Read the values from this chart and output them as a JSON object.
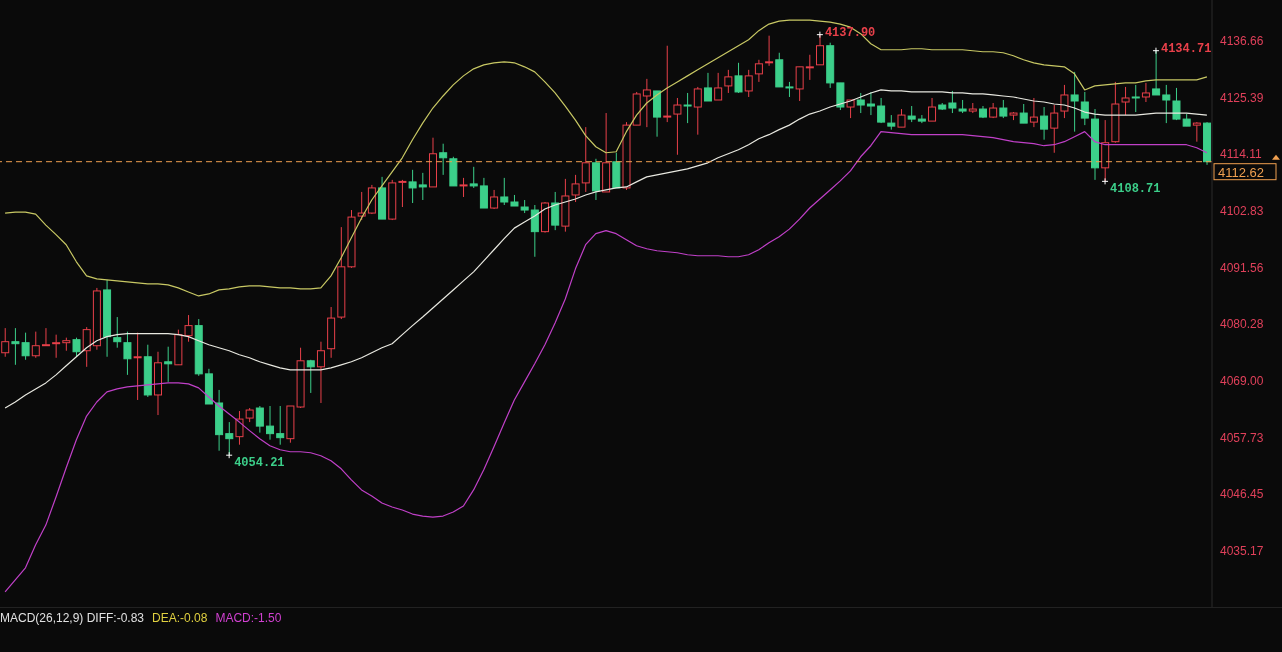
{
  "chart_data": {
    "type": "candlestick",
    "categories": [
      null,
      null,
      null,
      null,
      null,
      null,
      null,
      null,
      null,
      null,
      null,
      null,
      null,
      null,
      null,
      null,
      null,
      null,
      null,
      null,
      null,
      null,
      null,
      null,
      null,
      null,
      null,
      null,
      null,
      null,
      null,
      null,
      null,
      null,
      null,
      null,
      null,
      null,
      null,
      null,
      null,
      null,
      null,
      null,
      null,
      null,
      null,
      null,
      null,
      null,
      null,
      null,
      null,
      null,
      null,
      null,
      null,
      null,
      null,
      null,
      null,
      null,
      null,
      null,
      null,
      null,
      null,
      null,
      null,
      null,
      null,
      null,
      null,
      null,
      null,
      null,
      null,
      null,
      null,
      null,
      null,
      null,
      null,
      null,
      null,
      null,
      null,
      null,
      null,
      null,
      null,
      null,
      null,
      null,
      null,
      null,
      null,
      null,
      null,
      null,
      null,
      null,
      null,
      null,
      null,
      null,
      null,
      null,
      null,
      null,
      null,
      null,
      null,
      null,
      null,
      null,
      null,
      null,
      null
    ],
    "ohlc": [
      [
        4074.6,
        4079.5,
        4073.8,
        4076.8
      ],
      [
        4076.8,
        4079.5,
        4072.2,
        4076.4
      ],
      [
        4076.6,
        4078.6,
        4073.2,
        4074.0
      ],
      [
        4074.0,
        4078.8,
        4073.6,
        4076.0
      ],
      [
        4076.1,
        4079.5,
        4076.0,
        4076.2
      ],
      [
        4076.4,
        4078.2,
        4073.6,
        4076.6
      ],
      [
        4076.6,
        4077.6,
        4075.0,
        4077.0
      ],
      [
        4077.2,
        4077.6,
        4073.8,
        4074.8
      ],
      [
        4075.0,
        4079.7,
        4071.8,
        4079.2
      ],
      [
        4076.0,
        4087.5,
        4075.2,
        4086.9
      ],
      [
        4087.1,
        4089.1,
        4073.8,
        4077.8
      ],
      [
        4077.6,
        4081.7,
        4075.6,
        4076.8
      ],
      [
        4076.6,
        4078.8,
        4070.2,
        4073.4
      ],
      [
        4073.6,
        4078.6,
        4065.2,
        4073.8
      ],
      [
        4073.8,
        4076.2,
        4065.8,
        4066.2
      ],
      [
        4066.2,
        4074.8,
        4062.2,
        4072.6
      ],
      [
        4072.8,
        4075.8,
        4068.8,
        4072.4
      ],
      [
        4072.2,
        4079.2,
        4072.2,
        4078.2
      ],
      [
        4078.0,
        4082.1,
        4076.8,
        4080.0
      ],
      [
        4080.0,
        4081.3,
        4070.0,
        4070.4
      ],
      [
        4070.4,
        4071.4,
        4064.4,
        4064.4
      ],
      [
        4064.6,
        4067.2,
        4055.1,
        4058.3
      ],
      [
        4058.5,
        4060.8,
        4054.21,
        4057.5
      ],
      [
        4057.9,
        4063.0,
        4056.3,
        4061.4
      ],
      [
        4061.6,
        4063.6,
        4060.8,
        4063.2
      ],
      [
        4063.6,
        4064.0,
        4058.7,
        4060.0
      ],
      [
        4060.0,
        4064.0,
        4057.3,
        4058.5
      ],
      [
        4058.5,
        4064.0,
        4056.3,
        4057.7
      ],
      [
        4057.5,
        4064.0,
        4056.7,
        4064.0
      ],
      [
        4063.8,
        4075.6,
        4063.6,
        4073.0
      ],
      [
        4073.0,
        4073.2,
        4066.6,
        4071.8
      ],
      [
        4071.8,
        4076.8,
        4064.6,
        4075.0
      ],
      [
        4075.4,
        4083.7,
        4073.6,
        4081.5
      ],
      [
        4081.7,
        4099.6,
        4081.3,
        4091.7
      ],
      [
        4091.7,
        4103.0,
        4091.5,
        4101.6
      ],
      [
        4101.8,
        4106.6,
        4101.0,
        4102.4
      ],
      [
        4102.4,
        4108.0,
        4102.2,
        4107.4
      ],
      [
        4107.4,
        4109.6,
        4101.2,
        4101.2
      ],
      [
        4101.2,
        4109.0,
        4101.0,
        4108.4
      ],
      [
        4108.5,
        4109.0,
        4103.6,
        4108.7
      ],
      [
        4108.6,
        4111.0,
        4104.4,
        4107.4
      ],
      [
        4108.0,
        4110.4,
        4105.0,
        4107.6
      ],
      [
        4107.6,
        4117.4,
        4107.6,
        4114.2
      ],
      [
        4114.4,
        4116.2,
        4110.0,
        4113.4
      ],
      [
        4113.2,
        4113.6,
        4107.8,
        4107.8
      ],
      [
        4107.8,
        4109.4,
        4105.6,
        4108.0
      ],
      [
        4108.2,
        4111.6,
        4107.4,
        4107.8
      ],
      [
        4107.8,
        4109.4,
        4103.4,
        4103.4
      ],
      [
        4103.4,
        4107.0,
        4103.2,
        4105.6
      ],
      [
        4105.6,
        4109.4,
        4104.0,
        4104.6
      ],
      [
        4104.6,
        4106.0,
        4103.8,
        4103.8
      ],
      [
        4103.6,
        4105.0,
        4102.4,
        4103.0
      ],
      [
        4103.0,
        4104.0,
        4093.7,
        4098.7
      ],
      [
        4098.7,
        4104.6,
        4098.5,
        4104.4
      ],
      [
        4104.4,
        4106.6,
        4099.0,
        4100.0
      ],
      [
        4099.8,
        4109.2,
        4098.7,
        4105.8
      ],
      [
        4106.0,
        4110.0,
        4104.6,
        4108.2
      ],
      [
        4108.4,
        4119.5,
        4106.6,
        4112.4
      ],
      [
        4112.4,
        4113.2,
        4105.0,
        4106.8
      ],
      [
        4106.6,
        4122.3,
        4106.6,
        4112.4
      ],
      [
        4112.6,
        4114.4,
        4107.4,
        4107.4
      ],
      [
        4107.4,
        4120.5,
        4107.0,
        4119.9
      ],
      [
        4119.9,
        4126.5,
        4119.9,
        4126.1
      ],
      [
        4125.7,
        4129.1,
        4119.5,
        4126.9
      ],
      [
        4126.7,
        4126.7,
        4117.6,
        4121.5
      ],
      [
        4121.5,
        4135.7,
        4120.5,
        4121.7
      ],
      [
        4122.1,
        4125.3,
        4114.0,
        4123.9
      ],
      [
        4123.9,
        4126.3,
        4120.3,
        4123.7
      ],
      [
        4123.5,
        4127.5,
        4118.0,
        4127.1
      ],
      [
        4127.3,
        4130.3,
        4124.7,
        4124.7
      ],
      [
        4124.9,
        4130.3,
        4124.9,
        4127.3
      ],
      [
        4127.7,
        4130.9,
        4126.3,
        4129.5
      ],
      [
        4129.7,
        4132.3,
        4126.3,
        4126.5
      ],
      [
        4126.7,
        4130.9,
        4125.5,
        4129.7
      ],
      [
        4130.1,
        4132.9,
        4128.5,
        4132.1
      ],
      [
        4132.3,
        4137.7,
        4131.7,
        4132.5
      ],
      [
        4132.9,
        4134.3,
        4127.5,
        4127.5
      ],
      [
        4127.5,
        4128.5,
        4125.5,
        4127.3
      ],
      [
        4127.1,
        4131.5,
        4124.7,
        4131.5
      ],
      [
        4131.3,
        4133.9,
        4128.9,
        4131.5
      ],
      [
        4131.9,
        4137.9,
        4131.9,
        4135.7
      ],
      [
        4135.7,
        4136.3,
        4127.3,
        4128.3
      ],
      [
        4128.3,
        4128.3,
        4122.9,
        4123.5
      ],
      [
        4123.5,
        4124.9,
        4121.3,
        4124.9
      ],
      [
        4124.9,
        4126.3,
        4122.3,
        4123.9
      ],
      [
        4124.1,
        4126.5,
        4121.9,
        4123.7
      ],
      [
        4123.7,
        4125.3,
        4120.3,
        4120.5
      ],
      [
        4120.3,
        4121.9,
        4119.0,
        4119.7
      ],
      [
        4119.5,
        4123.1,
        4119.5,
        4121.9
      ],
      [
        4121.7,
        4123.7,
        4120.5,
        4121.1
      ],
      [
        4121.1,
        4121.9,
        4120.3,
        4120.7
      ],
      [
        4120.7,
        4125.3,
        4120.7,
        4123.5
      ],
      [
        4123.9,
        4124.3,
        4122.9,
        4123.1
      ],
      [
        4124.3,
        4126.7,
        4122.3,
        4123.3
      ],
      [
        4123.1,
        4124.9,
        4122.3,
        4122.7
      ],
      [
        4122.7,
        4124.3,
        4122.3,
        4123.1
      ],
      [
        4123.1,
        4123.7,
        4121.3,
        4121.5
      ],
      [
        4121.5,
        4124.3,
        4121.3,
        4123.3
      ],
      [
        4123.3,
        4124.9,
        4121.3,
        4121.7
      ],
      [
        4121.9,
        4122.5,
        4120.9,
        4122.3
      ],
      [
        4122.3,
        4124.1,
        4120.3,
        4120.3
      ],
      [
        4120.5,
        4125.3,
        4119.5,
        4121.5
      ],
      [
        4121.7,
        4123.5,
        4117.0,
        4119.1
      ],
      [
        4119.3,
        4123.9,
        4114.4,
        4122.3
      ],
      [
        4122.7,
        4127.9,
        4121.3,
        4125.9
      ],
      [
        4125.9,
        4130.5,
        4118.6,
        4124.7
      ],
      [
        4124.5,
        4126.5,
        4119.9,
        4121.3
      ],
      [
        4121.1,
        4123.1,
        4109.0,
        4111.4
      ],
      [
        4111.4,
        4120.9,
        4108.71,
        4116.4
      ],
      [
        4116.6,
        4128.5,
        4116.4,
        4124.1
      ],
      [
        4124.5,
        4127.5,
        4121.9,
        4125.3
      ],
      [
        4125.5,
        4127.9,
        4122.5,
        4125.3
      ],
      [
        4125.5,
        4128.3,
        4124.5,
        4126.3
      ],
      [
        4127.1,
        4134.71,
        4125.9,
        4125.9
      ],
      [
        4125.9,
        4127.9,
        4120.3,
        4124.9
      ],
      [
        4124.7,
        4127.3,
        4120.9,
        4121.1
      ],
      [
        4121.1,
        4122.1,
        4119.7,
        4119.7
      ],
      [
        4119.9,
        4120.5,
        4116.6,
        4120.3
      ],
      [
        4120.3,
        4120.5,
        4112.0,
        4112.62
      ]
    ],
    "series": [
      {
        "type": "line",
        "color": "#c8c864",
        "values": [
          4102.4,
          4102.6,
          4102.6,
          4102.2,
          4100.0,
          4098.1,
          4096.1,
          4092.7,
          4089.9,
          4089.3,
          4089.1,
          4088.9,
          4088.7,
          4088.5,
          4088.3,
          4088.3,
          4088.1,
          4087.5,
          4086.7,
          4085.9,
          4086.3,
          4087.1,
          4087.3,
          4087.7,
          4087.9,
          4087.9,
          4087.7,
          4087.5,
          4087.5,
          4087.3,
          4087.3,
          4087.5,
          4089.9,
          4093.5,
          4097.5,
          4101.4,
          4105.0,
          4107.8,
          4110.6,
          4113.4,
          4117.0,
          4120.3,
          4123.3,
          4125.7,
          4127.9,
          4129.7,
          4131.1,
          4131.9,
          4132.3,
          4132.5,
          4132.3,
          4131.5,
          4130.5,
          4128.5,
          4126.3,
          4123.7,
          4120.9,
          4117.8,
          4115.6,
          4114.4,
          4114.6,
          4118.6,
          4121.9,
          4124.3,
          4125.9,
          4127.3,
          4128.5,
          4129.7,
          4130.9,
          4132.1,
          4133.3,
          4134.5,
          4135.7,
          4136.9,
          4138.7,
          4140.0,
          4140.6,
          4140.8,
          4140.8,
          4140.8,
          4140.6,
          4140.4,
          4140.0,
          4139.4,
          4138.1,
          4136.1,
          4134.9,
          4134.9,
          4134.9,
          4135.1,
          4135.1,
          4134.9,
          4134.9,
          4134.9,
          4134.9,
          4134.7,
          4134.5,
          4134.5,
          4134.3,
          4133.7,
          4132.9,
          4132.3,
          4131.9,
          4131.7,
          4131.5,
          4130.1,
          4126.9,
          4127.7,
          4127.9,
          4128.1,
          4128.3,
          4128.3,
          4128.7,
          4128.9,
          4128.9,
          4128.9,
          4128.9,
          4128.9,
          4129.5
        ]
      },
      {
        "type": "line",
        "color": "#e8e8e0",
        "values": [
          4063.6,
          4064.8,
          4066.2,
          4067.4,
          4068.6,
          4070.2,
          4072.0,
          4073.8,
          4075.6,
          4077.0,
          4077.8,
          4078.2,
          4078.4,
          4078.4,
          4078.4,
          4078.4,
          4078.4,
          4078.2,
          4077.8,
          4077.0,
          4076.2,
          4075.6,
          4075.0,
          4074.2,
          4073.6,
          4072.8,
          4072.2,
          4071.6,
          4071.2,
          4071.2,
          4071.2,
          4071.2,
          4071.6,
          4072.2,
          4072.8,
          4073.6,
          4074.6,
          4075.6,
          4076.4,
          4078.2,
          4080.0,
          4081.7,
          4083.5,
          4085.3,
          4087.1,
          4088.9,
          4090.7,
          4092.9,
          4095.1,
          4097.3,
          4099.4,
          4100.6,
          4101.8,
          4103.2,
          4104.0,
          4104.6,
          4105.2,
          4106.0,
          4106.6,
          4107.0,
          4107.4,
          4107.6,
          4108.6,
          4109.6,
          4110.0,
          4110.4,
          4110.8,
          4111.2,
          4111.8,
          4112.4,
          4113.4,
          4114.2,
          4115.0,
          4116.0,
          4117.2,
          4118.0,
          4119.0,
          4119.9,
          4121.1,
          4122.1,
          4122.7,
          4123.5,
          4124.1,
          4124.7,
          4125.5,
          4126.3,
          4126.9,
          4126.7,
          4126.7,
          4126.5,
          4126.5,
          4126.5,
          4126.5,
          4126.3,
          4126.3,
          4126.1,
          4126.1,
          4125.9,
          4125.7,
          4125.5,
          4125.1,
          4124.7,
          4124.5,
          4124.1,
          4123.9,
          4123.3,
          4122.5,
          4122.1,
          4121.9,
          4121.9,
          4121.9,
          4121.9,
          4122.1,
          4122.3,
          4122.3,
          4122.3,
          4122.3,
          4122.1,
          4121.9
        ]
      },
      {
        "type": "line",
        "color": "#c040c8",
        "values": [
          4027.0,
          4029.4,
          4031.8,
          4036.4,
          4040.3,
          4045.9,
          4051.7,
          4057.3,
          4062.0,
          4064.8,
          4066.8,
          4067.4,
          4067.8,
          4068.0,
          4068.2,
          4068.4,
          4068.6,
          4068.6,
          4068.4,
          4067.6,
          4065.8,
          4064.0,
          4062.4,
          4060.8,
          4059.1,
          4057.5,
          4056.1,
          4055.3,
          4054.9,
          4054.9,
          4054.7,
          4054.1,
          4053.1,
          4051.5,
          4049.3,
          4047.3,
          4046.1,
          4044.7,
          4043.9,
          4043.3,
          4042.5,
          4042.1,
          4041.9,
          4042.1,
          4042.9,
          4044.1,
          4047.3,
          4051.3,
          4055.9,
          4060.6,
          4065.2,
          4068.8,
          4072.4,
          4076.2,
          4080.5,
          4085.3,
          4091.3,
          4096.1,
          4098.3,
          4098.9,
          4098.3,
          4097.1,
          4095.9,
          4095.3,
          4094.9,
          4094.7,
          4094.5,
          4094.1,
          4093.9,
          4093.9,
          4093.9,
          4093.7,
          4093.7,
          4094.1,
          4095.1,
          4096.5,
          4097.7,
          4099.2,
          4101.2,
          4103.4,
          4105.2,
          4107.0,
          4108.8,
          4110.8,
          4113.6,
          4115.8,
          4118.6,
          4118.4,
          4118.2,
          4118.0,
          4118.0,
          4118.0,
          4118.0,
          4118.0,
          4118.0,
          4117.8,
          4117.6,
          4117.4,
          4117.0,
          4116.6,
          4116.4,
          4116.2,
          4115.8,
          4116.0,
          4116.6,
          4117.6,
          4118.6,
          4116.6,
          4116.0,
          4116.0,
          4116.0,
          4116.0,
          4116.0,
          4116.0,
          4116.0,
          4116.0,
          4116.0,
          4115.4,
          4114.4
        ]
      }
    ],
    "ylim": [
      4024.0,
      4144.8
    ],
    "yticks": [
      4136.66,
      4125.39,
      4114.11,
      4102.83,
      4091.56,
      4080.28,
      {
        "value": 4069,
        "label": "4069.00"
      },
      4057.73,
      4046.45,
      4035.17
    ],
    "tick_labels": "y",
    "ref_lines": [
      {
        "axis": "y",
        "value": 4112.62,
        "label": "4112.62",
        "color": "#f0a050",
        "line_style": "dashed"
      }
    ],
    "annotations": [
      "4137.90",
      "4134.71",
      "4108.71",
      "4054.21",
      "MACD(26,12,9) DIFF:-0.83",
      "DEA:-0.08",
      "MACD:-1.50"
    ],
    "grid": false,
    "legend": false
  }
}
